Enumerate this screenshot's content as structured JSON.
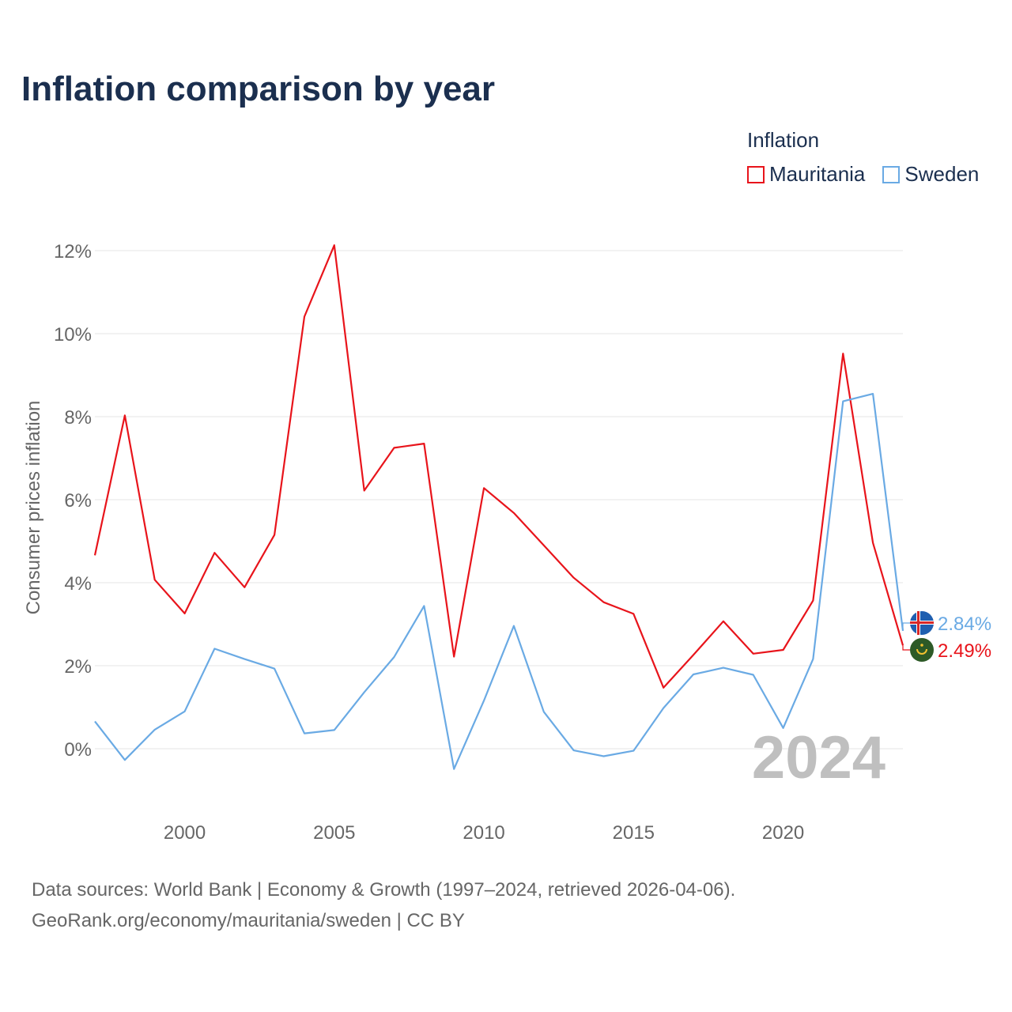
{
  "title": "Inflation comparison by year",
  "legend": {
    "title": "Inflation",
    "items": [
      {
        "label": "Mauritania",
        "color": "#e8141b"
      },
      {
        "label": "Sweden",
        "color": "#6aaae4"
      }
    ]
  },
  "chart_data": {
    "type": "line",
    "title": "Inflation comparison by year",
    "xlabel": "",
    "ylabel": "Consumer prices inflation",
    "xlim": [
      1997,
      2024
    ],
    "ylim": [
      -1.2,
      12.5
    ],
    "grid": true,
    "legend_position": "top-right",
    "x_ticks": [
      2000,
      2005,
      2010,
      2015,
      2020
    ],
    "y_ticks": [
      0,
      2,
      4,
      6,
      8,
      10,
      12
    ],
    "y_tick_labels": [
      "0%",
      "2%",
      "4%",
      "6%",
      "8%",
      "10%",
      "12%"
    ],
    "x": [
      1997,
      1998,
      1999,
      2000,
      2001,
      2002,
      2003,
      2004,
      2005,
      2006,
      2007,
      2008,
      2009,
      2010,
      2011,
      2012,
      2013,
      2014,
      2015,
      2016,
      2017,
      2018,
      2019,
      2020,
      2021,
      2022,
      2023,
      2024
    ],
    "series": [
      {
        "name": "Mauritania",
        "color": "#e8141b",
        "values": [
          4.66,
          8.03,
          4.07,
          3.26,
          4.72,
          3.89,
          5.15,
          10.41,
          12.13,
          6.22,
          7.25,
          7.35,
          2.22,
          6.28,
          5.68,
          4.9,
          4.12,
          3.53,
          3.25,
          1.47,
          2.26,
          3.07,
          2.29,
          2.38,
          3.57,
          9.52,
          4.96,
          2.49
        ],
        "end_label": "2.49%"
      },
      {
        "name": "Sweden",
        "color": "#6aaae4",
        "values": [
          0.66,
          -0.27,
          0.46,
          0.9,
          2.41,
          2.16,
          1.93,
          0.37,
          0.45,
          1.36,
          2.21,
          3.44,
          -0.49,
          1.16,
          2.96,
          0.89,
          -0.04,
          -0.18,
          -0.05,
          0.98,
          1.79,
          1.95,
          1.78,
          0.5,
          2.16,
          8.37,
          8.55,
          2.84
        ],
        "end_label": "2.84%"
      }
    ],
    "annotation": "2024"
  },
  "source": {
    "line1": "Data sources: World Bank | Economy & Growth (1997–2024, retrieved 2026-04-06).",
    "line2": "GeoRank.org/economy/mauritania/sweden | CC BY"
  }
}
